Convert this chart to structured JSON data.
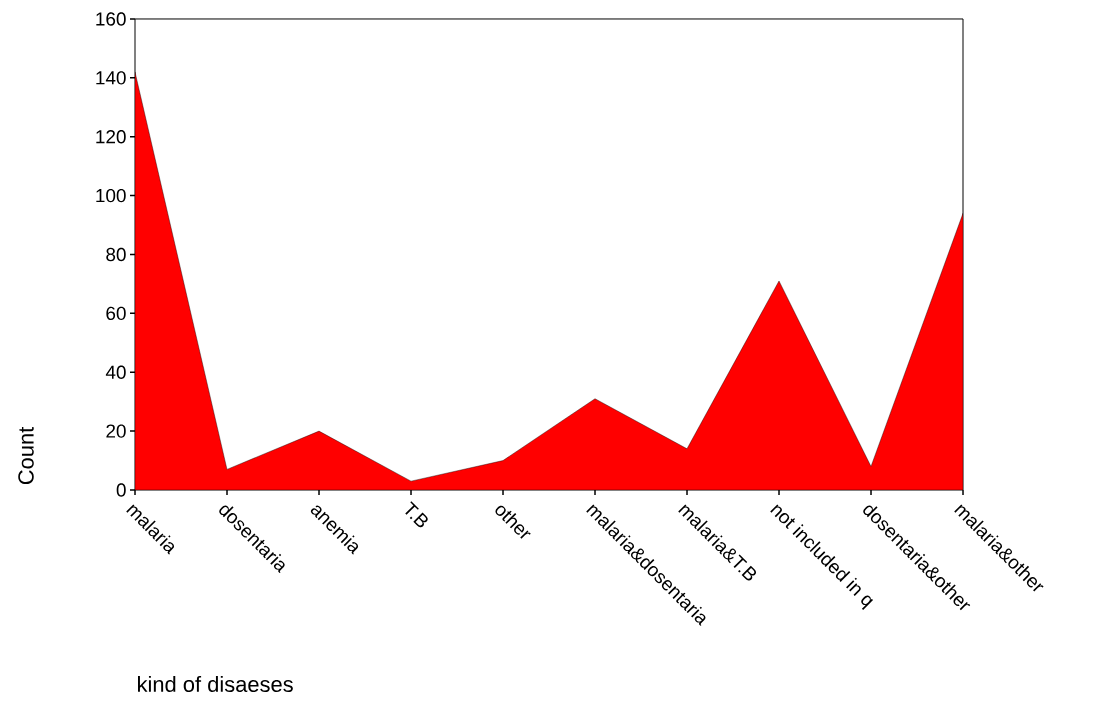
{
  "chart_data": {
    "type": "area",
    "xlabel": "kind of disaeses",
    "ylabel": "Count",
    "categories": [
      "malaria",
      "dosentaria",
      "anemia",
      "T.B",
      "other",
      "malaria&dosentaria",
      "malaria&T.B",
      "not included in q",
      "dosentaria&other",
      "malaria&other"
    ],
    "values": [
      142,
      7,
      20,
      3,
      10,
      31,
      14,
      71,
      8,
      94
    ],
    "color": "#ff0000",
    "ylim": [
      0,
      160
    ],
    "yticks": [
      0,
      20,
      40,
      60,
      80,
      100,
      120,
      140,
      160
    ],
    "grid": false
  }
}
